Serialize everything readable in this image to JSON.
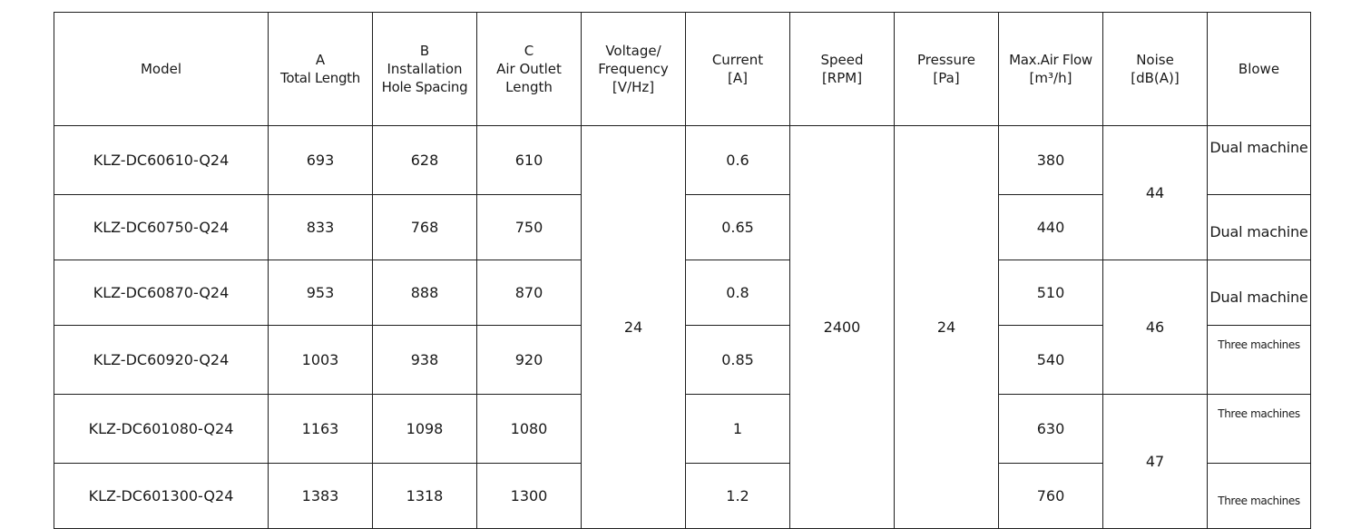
{
  "table": {
    "headers": [
      {
        "key": "model",
        "lines": [
          "Model"
        ]
      },
      {
        "key": "total_length",
        "lines": [
          "A",
          "Total Length"
        ]
      },
      {
        "key": "hole_spacing",
        "lines": [
          "B",
          "Installation",
          "Hole Spacing"
        ]
      },
      {
        "key": "outlet_length",
        "lines": [
          "C",
          "Air Outlet",
          "Length"
        ]
      },
      {
        "key": "voltage",
        "lines": [
          "Voltage/",
          "Frequency",
          "[V/Hz]"
        ]
      },
      {
        "key": "current",
        "lines": [
          "Current",
          "[A]"
        ]
      },
      {
        "key": "speed",
        "lines": [
          "Speed",
          "[RPM]"
        ]
      },
      {
        "key": "pressure",
        "lines": [
          "Pressure",
          "[Pa]"
        ]
      },
      {
        "key": "air_flow",
        "lines": [
          "Max.Air Flow",
          "[m³/h]"
        ]
      },
      {
        "key": "noise",
        "lines": [
          "Noise",
          "[dB(A)]"
        ]
      },
      {
        "key": "blower",
        "lines": [
          "Blowe"
        ]
      }
    ],
    "rows": [
      {
        "model": "KLZ-DC60610-Q24",
        "total_length": "693",
        "hole_spacing": "628",
        "outlet_length": "610",
        "current": "0.6",
        "air_flow": "380",
        "blower": "Dual machine"
      },
      {
        "model": "KLZ-DC60750-Q24",
        "total_length": "833",
        "hole_spacing": "768",
        "outlet_length": "750",
        "current": "0.65",
        "air_flow": "440",
        "blower": "Dual machine"
      },
      {
        "model": "KLZ-DC60870-Q24",
        "total_length": "953",
        "hole_spacing": "888",
        "outlet_length": "870",
        "current": "0.8",
        "air_flow": "510",
        "blower": "Dual machine"
      },
      {
        "model": "KLZ-DC60920-Q24",
        "total_length": "1003",
        "hole_spacing": "938",
        "outlet_length": "920",
        "current": "0.85",
        "air_flow": "540",
        "blower": "Three machines"
      },
      {
        "model": "KLZ-DC601080-Q24",
        "total_length": "1163",
        "hole_spacing": "1098",
        "outlet_length": "1080",
        "current": "1",
        "air_flow": "630",
        "blower": "Three machines"
      },
      {
        "model": "KLZ-DC601300-Q24",
        "total_length": "1383",
        "hole_spacing": "1318",
        "outlet_length": "1300",
        "current": "1.2",
        "air_flow": "760",
        "blower": "Three machines"
      }
    ],
    "merged": {
      "voltage": "24",
      "speed": "2400",
      "pressure": "24",
      "noise_groups": [
        "44",
        "46",
        "47"
      ]
    }
  }
}
